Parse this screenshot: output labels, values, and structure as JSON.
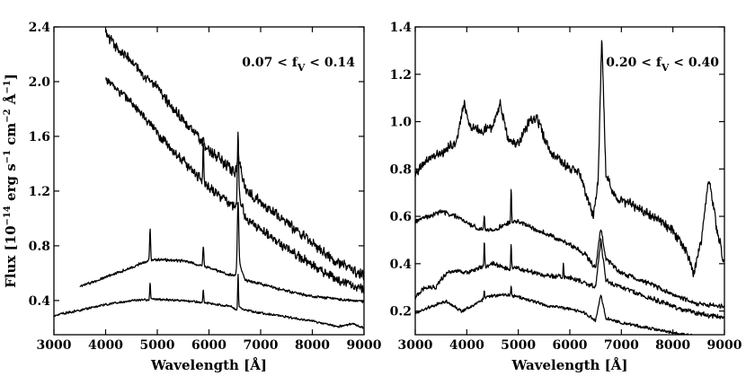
{
  "chart_data": [
    {
      "type": "line",
      "panel_label": {
        "prefix": "0.07 < f",
        "sub": "V",
        "suffix": " < 0.14"
      },
      "xlabel": "Wavelength [Å]",
      "ylabel": "Flux [10−14 erg s−1 cm−2 Å−1]",
      "ylabel_parts": [
        "Flux [10",
        "−14",
        " erg s",
        "−1",
        " cm",
        "−2",
        " Å",
        "−1",
        "]"
      ],
      "xlim": [
        3000,
        9000
      ],
      "ylim": [
        0.15,
        2.4
      ],
      "xticks": [
        3000,
        4000,
        5000,
        6000,
        7000,
        8000,
        9000
      ],
      "yticks": [
        0.4,
        0.8,
        1.2,
        1.6,
        2.0,
        2.4
      ],
      "ytick_labels": [
        "0.4",
        "0.8",
        "1.2",
        "1.6",
        "2.0",
        "2.4"
      ],
      "grid": false,
      "series": [
        {
          "x": [
            4000,
            4200,
            4500,
            5000,
            5500,
            6000,
            6500,
            6600,
            6700,
            7000,
            7500,
            8000,
            8500,
            9000
          ],
          "y": [
            2.35,
            2.25,
            2.15,
            1.95,
            1.72,
            1.5,
            1.33,
            1.4,
            1.22,
            1.12,
            0.97,
            0.82,
            0.68,
            0.58
          ],
          "noise": 0.045,
          "lines": [
            [
              5890,
              0.06,
              8
            ],
            [
              6563,
              0.08,
              14
            ],
            [
              6200,
              0.04,
              20
            ]
          ]
        },
        {
          "x": [
            4000,
            4200,
            4500,
            5000,
            5500,
            6000,
            6500,
            6600,
            6700,
            7000,
            7500,
            8000,
            8500,
            9000
          ],
          "y": [
            2.02,
            1.95,
            1.85,
            1.62,
            1.42,
            1.23,
            1.08,
            1.15,
            1.0,
            0.92,
            0.78,
            0.66,
            0.55,
            0.48
          ],
          "noise": 0.04,
          "lines": [
            [
              5890,
              0.3,
              8
            ],
            [
              6563,
              0.5,
              12
            ]
          ]
        },
        {
          "x": [
            3500,
            4000,
            4500,
            4800,
            5000,
            5500,
            6000,
            6300,
            6500,
            6600,
            6700,
            7000,
            7500,
            8000,
            8500,
            9000
          ],
          "y": [
            0.5,
            0.57,
            0.64,
            0.69,
            0.7,
            0.69,
            0.64,
            0.6,
            0.58,
            0.66,
            0.55,
            0.52,
            0.47,
            0.43,
            0.41,
            0.39
          ],
          "noise": 0.012,
          "lines": [
            [
              4861,
              0.22,
              10
            ],
            [
              5890,
              0.15,
              10
            ],
            [
              6563,
              0.5,
              14
            ]
          ]
        },
        {
          "x": [
            3000,
            3500,
            4000,
            4500,
            5000,
            5500,
            6000,
            6400,
            6550,
            6600,
            6700,
            7000,
            7500,
            8000,
            8500,
            8800,
            9000
          ],
          "y": [
            0.29,
            0.33,
            0.37,
            0.4,
            0.41,
            0.4,
            0.38,
            0.36,
            0.33,
            0.35,
            0.33,
            0.31,
            0.28,
            0.25,
            0.21,
            0.23,
            0.2
          ],
          "noise": 0.01,
          "lines": [
            [
              4861,
              0.12,
              8
            ],
            [
              5890,
              0.1,
              8
            ],
            [
              6563,
              0.25,
              8
            ]
          ]
        }
      ]
    },
    {
      "type": "line",
      "panel_label": {
        "prefix": "0.20 < f",
        "sub": "V",
        "suffix": " < 0.40"
      },
      "xlabel": "Wavelength [Å]",
      "ylabel": "",
      "xlim": [
        3000,
        9000
      ],
      "ylim": [
        0.1,
        1.4
      ],
      "xticks": [
        3000,
        4000,
        5000,
        6000,
        7000,
        8000,
        9000
      ],
      "yticks": [
        0.2,
        0.4,
        0.6,
        0.8,
        1.0,
        1.2,
        1.4
      ],
      "ytick_labels": [
        "0.2",
        "0.4",
        "0.6",
        "0.8",
        "1.0",
        "1.2",
        "1.4"
      ],
      "grid": false,
      "series": [
        {
          "x": [
            3000,
            3300,
            3600,
            3800,
            3950,
            4050,
            4300,
            4500,
            4650,
            4800,
            5000,
            5200,
            5350,
            5600,
            5900,
            6200,
            6450,
            6550,
            6620,
            6700,
            6900,
            7200,
            7600,
            8000,
            8250,
            8400,
            8550,
            8700,
            8850,
            9000
          ],
          "y": [
            0.78,
            0.85,
            0.88,
            0.92,
            1.08,
            0.98,
            0.96,
            0.98,
            1.08,
            0.92,
            0.9,
            1.0,
            1.02,
            0.88,
            0.82,
            0.78,
            0.6,
            0.75,
            1.35,
            0.78,
            0.68,
            0.65,
            0.6,
            0.54,
            0.46,
            0.36,
            0.5,
            0.76,
            0.55,
            0.4
          ],
          "noise": 0.025,
          "lines": []
        },
        {
          "x": [
            3000,
            3500,
            3800,
            4200,
            4500,
            4800,
            5000,
            5300,
            5600,
            6000,
            6300,
            6500,
            6600,
            6700,
            7000,
            7500,
            8000,
            8500,
            9000
          ],
          "y": [
            0.58,
            0.62,
            0.6,
            0.55,
            0.54,
            0.57,
            0.58,
            0.55,
            0.52,
            0.48,
            0.44,
            0.38,
            0.55,
            0.42,
            0.36,
            0.32,
            0.27,
            0.23,
            0.22
          ],
          "noise": 0.012,
          "lines": [
            [
              4861,
              0.15,
              8
            ],
            [
              4340,
              0.05,
              8
            ]
          ]
        },
        {
          "x": [
            3000,
            3200,
            3400,
            3600,
            3800,
            4000,
            4200,
            4500,
            4800,
            5000,
            5300,
            5600,
            6000,
            6300,
            6500,
            6600,
            6700,
            7000,
            7500,
            8000,
            8500,
            9000
          ],
          "y": [
            0.26,
            0.3,
            0.3,
            0.36,
            0.37,
            0.36,
            0.38,
            0.4,
            0.38,
            0.38,
            0.36,
            0.35,
            0.34,
            0.32,
            0.3,
            0.5,
            0.33,
            0.3,
            0.26,
            0.22,
            0.19,
            0.17
          ],
          "noise": 0.012,
          "lines": [
            [
              4340,
              0.1,
              8
            ],
            [
              4861,
              0.1,
              8
            ],
            [
              5876,
              0.06,
              8
            ]
          ]
        },
        {
          "x": [
            3000,
            3300,
            3600,
            3900,
            4100,
            4400,
            4700,
            5000,
            5300,
            5600,
            6000,
            6300,
            6500,
            6600,
            6700,
            7000,
            7500,
            8000,
            8500,
            9000
          ],
          "y": [
            0.19,
            0.22,
            0.24,
            0.2,
            0.22,
            0.26,
            0.27,
            0.26,
            0.24,
            0.22,
            0.21,
            0.19,
            0.16,
            0.27,
            0.17,
            0.15,
            0.13,
            0.11,
            0.09,
            0.08
          ],
          "noise": 0.008,
          "lines": [
            [
              4340,
              0.03,
              8
            ],
            [
              4861,
              0.04,
              8
            ]
          ]
        }
      ]
    }
  ]
}
